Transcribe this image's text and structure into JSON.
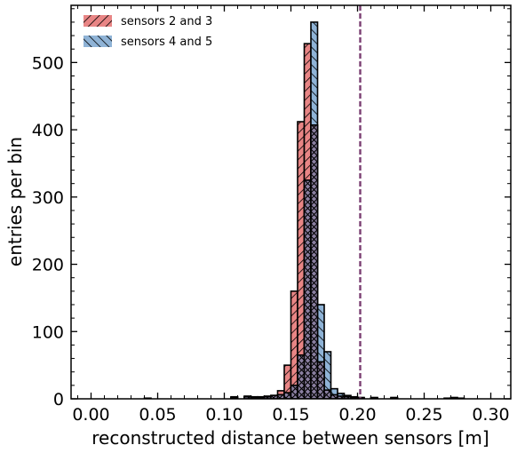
{
  "chart_data": {
    "type": "histogram",
    "title": "",
    "xlabel": "reconstructed distance between sensors [m]",
    "ylabel": "entries per bin",
    "xlim": [
      -0.015,
      0.315
    ],
    "ylim": [
      0,
      585
    ],
    "xticks": [
      "0.00",
      "0.05",
      "0.10",
      "0.15",
      "0.20",
      "0.25",
      "0.30"
    ],
    "yticks": [
      "0",
      "100",
      "200",
      "300",
      "400",
      "500"
    ],
    "bin_width": 0.005,
    "reference_line": {
      "x": 0.202,
      "style": "dashed",
      "color": "#7b3f72"
    },
    "legend_position": "top-left",
    "series": [
      {
        "name": "sensors 2 and 3",
        "color": "#e88585",
        "hatch": "////",
        "bins": [
          {
            "x": 0.04,
            "value": 1
          },
          {
            "x": 0.105,
            "value": 3
          },
          {
            "x": 0.115,
            "value": 4
          },
          {
            "x": 0.12,
            "value": 3
          },
          {
            "x": 0.125,
            "value": 2
          },
          {
            "x": 0.13,
            "value": 3
          },
          {
            "x": 0.135,
            "value": 5
          },
          {
            "x": 0.14,
            "value": 12
          },
          {
            "x": 0.145,
            "value": 50
          },
          {
            "x": 0.15,
            "value": 160
          },
          {
            "x": 0.155,
            "value": 412
          },
          {
            "x": 0.16,
            "value": 528
          },
          {
            "x": 0.165,
            "value": 407
          },
          {
            "x": 0.17,
            "value": 55
          },
          {
            "x": 0.175,
            "value": 13
          },
          {
            "x": 0.18,
            "value": 6
          },
          {
            "x": 0.185,
            "value": 4
          },
          {
            "x": 0.19,
            "value": 3
          },
          {
            "x": 0.195,
            "value": 2
          },
          {
            "x": 0.2,
            "value": 1
          },
          {
            "x": 0.21,
            "value": 2
          },
          {
            "x": 0.225,
            "value": 1
          },
          {
            "x": 0.27,
            "value": 2
          },
          {
            "x": 0.275,
            "value": 1
          }
        ]
      },
      {
        "name": "sensors 4 and 5",
        "color": "#8fb3d6",
        "hatch": "\\\\\\\\",
        "bins": [
          {
            "x": 0.105,
            "value": 2
          },
          {
            "x": 0.115,
            "value": 3
          },
          {
            "x": 0.12,
            "value": 2
          },
          {
            "x": 0.125,
            "value": 3
          },
          {
            "x": 0.13,
            "value": 4
          },
          {
            "x": 0.135,
            "value": 5
          },
          {
            "x": 0.14,
            "value": 6
          },
          {
            "x": 0.145,
            "value": 9
          },
          {
            "x": 0.15,
            "value": 20
          },
          {
            "x": 0.155,
            "value": 65
          },
          {
            "x": 0.16,
            "value": 325
          },
          {
            "x": 0.165,
            "value": 560
          },
          {
            "x": 0.17,
            "value": 140
          },
          {
            "x": 0.175,
            "value": 70
          },
          {
            "x": 0.18,
            "value": 15
          },
          {
            "x": 0.185,
            "value": 8
          },
          {
            "x": 0.19,
            "value": 5
          },
          {
            "x": 0.195,
            "value": 3
          },
          {
            "x": 0.2,
            "value": 2
          },
          {
            "x": 0.21,
            "value": 1
          },
          {
            "x": 0.225,
            "value": 2
          },
          {
            "x": 0.265,
            "value": 1
          },
          {
            "x": 0.27,
            "value": 1
          }
        ]
      }
    ]
  }
}
